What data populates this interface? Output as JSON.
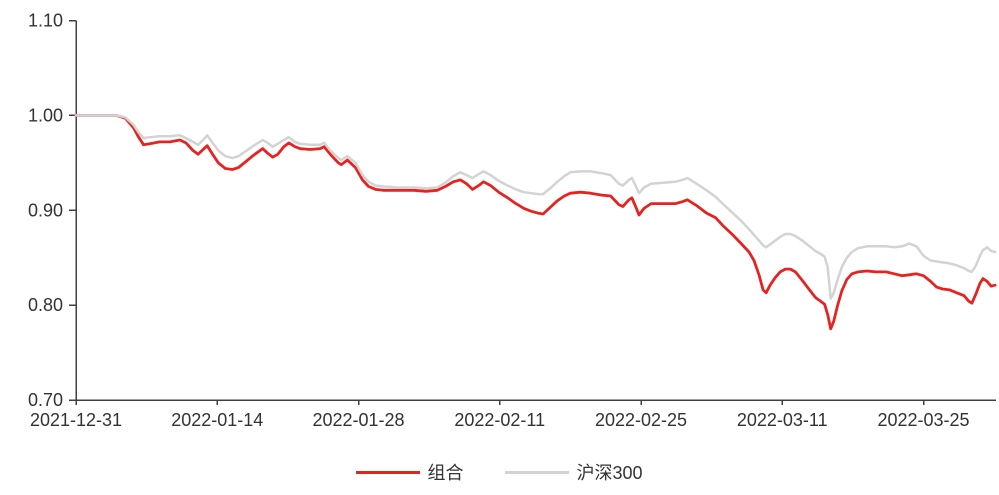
{
  "chart_data": {
    "type": "line",
    "title": "",
    "xlabel": "",
    "ylabel": "",
    "grid": "off",
    "legend_position": "bottom-center",
    "ylim": [
      0.7,
      1.1
    ],
    "y_ticks": [
      1.1,
      1.0,
      0.9,
      0.8,
      0.7
    ],
    "y_tick_labels": [
      "1.10",
      "1.00",
      "0.90",
      "0.80",
      "0.70"
    ],
    "x_unit": "days since 2021-12-31",
    "xlim_days": [
      0,
      91.4
    ],
    "x_ticks_days": [
      0,
      14,
      28,
      42,
      56,
      70,
      84
    ],
    "x_tick_labels": [
      "2021-12-31",
      "2022-01-14",
      "2022-01-28",
      "2022-02-11",
      "2022-02-25",
      "2022-03-11",
      "2022-03-25"
    ],
    "axis_color": "#404040",
    "label_color": "#333333",
    "x": [
      0,
      2,
      4,
      4.9,
      5.7,
      6.2,
      6.7,
      7.3,
      8.3,
      9.3,
      10.3,
      10.9,
      11.6,
      12.1,
      12.6,
      13,
      13.6,
      14.1,
      14.8,
      15.5,
      16.1,
      16.8,
      17.6,
      18.5,
      19,
      19.5,
      20,
      20.6,
      21.1,
      21.7,
      22.2,
      23.2,
      24.2,
      24.6,
      25.2,
      26,
      26.3,
      26.9,
      27.7,
      28.4,
      29,
      29.7,
      30.5,
      32,
      33.5,
      34.7,
      35.8,
      36.6,
      37.4,
      38.1,
      38.7,
      39.3,
      39.9,
      40.4,
      41.1,
      41.9,
      42.8,
      43.6,
      44.4,
      45.1,
      45.8,
      46.3,
      47,
      47.7,
      48.4,
      49,
      50,
      51,
      52.1,
      53,
      53.8,
      54.2,
      54.8,
      55.1,
      55.5,
      55.8,
      56.3,
      57,
      58.2,
      59.4,
      60.1,
      60.6,
      61.5,
      62.5,
      63.4,
      64.2,
      65.1,
      66,
      66.7,
      67.2,
      67.7,
      68.1,
      68.4,
      68.8,
      69.3,
      69.8,
      70.3,
      70.8,
      71.3,
      72,
      72.7,
      73.3,
      73.8,
      74.2,
      74.5,
      74.8,
      75.1,
      75.5,
      75.9,
      76.4,
      76.9,
      77.5,
      78.4,
      79.3,
      80.3,
      81.1,
      81.9,
      82.6,
      83.3,
      84,
      84.7,
      85.3,
      85.9,
      86.6,
      87.3,
      88,
      88.5,
      88.8,
      89.2,
      89.6,
      89.9,
      90.3,
      90.7,
      91.1
    ],
    "series": [
      {
        "name": "组合",
        "color": "#e62320",
        "stroke_width": 2.8,
        "values": [
          1.0,
          1.0,
          1.0,
          0.997,
          0.987,
          0.977,
          0.969,
          0.97,
          0.972,
          0.972,
          0.974,
          0.971,
          0.963,
          0.959,
          0.964,
          0.968,
          0.958,
          0.95,
          0.944,
          0.943,
          0.945,
          0.951,
          0.958,
          0.965,
          0.96,
          0.956,
          0.959,
          0.967,
          0.971,
          0.967,
          0.965,
          0.964,
          0.965,
          0.967,
          0.959,
          0.95,
          0.948,
          0.953,
          0.945,
          0.932,
          0.925,
          0.922,
          0.921,
          0.921,
          0.921,
          0.92,
          0.921,
          0.925,
          0.93,
          0.932,
          0.928,
          0.922,
          0.926,
          0.93,
          0.926,
          0.919,
          0.913,
          0.907,
          0.902,
          0.899,
          0.897,
          0.896,
          0.903,
          0.91,
          0.915,
          0.918,
          0.919,
          0.918,
          0.916,
          0.915,
          0.906,
          0.904,
          0.911,
          0.913,
          0.903,
          0.895,
          0.902,
          0.907,
          0.907,
          0.907,
          0.909,
          0.911,
          0.905,
          0.897,
          0.892,
          0.883,
          0.874,
          0.864,
          0.856,
          0.847,
          0.832,
          0.816,
          0.813,
          0.821,
          0.829,
          0.835,
          0.838,
          0.838,
          0.835,
          0.826,
          0.816,
          0.808,
          0.804,
          0.801,
          0.79,
          0.775,
          0.783,
          0.8,
          0.815,
          0.827,
          0.833,
          0.835,
          0.836,
          0.835,
          0.835,
          0.833,
          0.831,
          0.832,
          0.833,
          0.831,
          0.825,
          0.819,
          0.817,
          0.816,
          0.813,
          0.81,
          0.804,
          0.802,
          0.812,
          0.823,
          0.828,
          0.825,
          0.82,
          0.821
        ]
      },
      {
        "name": "沪深300",
        "color": "#d3d3d3",
        "stroke_width": 2.5,
        "values": [
          1.0,
          1.0,
          1.0,
          0.998,
          0.99,
          0.982,
          0.976,
          0.977,
          0.978,
          0.978,
          0.979,
          0.976,
          0.972,
          0.969,
          0.974,
          0.979,
          0.97,
          0.963,
          0.957,
          0.955,
          0.957,
          0.962,
          0.968,
          0.974,
          0.971,
          0.967,
          0.97,
          0.974,
          0.977,
          0.972,
          0.97,
          0.969,
          0.969,
          0.971,
          0.963,
          0.955,
          0.953,
          0.957,
          0.95,
          0.937,
          0.93,
          0.926,
          0.925,
          0.924,
          0.924,
          0.923,
          0.924,
          0.929,
          0.936,
          0.94,
          0.937,
          0.934,
          0.938,
          0.941,
          0.937,
          0.931,
          0.926,
          0.922,
          0.919,
          0.918,
          0.917,
          0.917,
          0.923,
          0.93,
          0.936,
          0.94,
          0.941,
          0.941,
          0.939,
          0.937,
          0.928,
          0.926,
          0.932,
          0.934,
          0.925,
          0.918,
          0.924,
          0.928,
          0.929,
          0.93,
          0.932,
          0.934,
          0.928,
          0.921,
          0.914,
          0.906,
          0.897,
          0.888,
          0.88,
          0.874,
          0.868,
          0.863,
          0.861,
          0.864,
          0.868,
          0.872,
          0.875,
          0.875,
          0.873,
          0.868,
          0.862,
          0.857,
          0.854,
          0.851,
          0.84,
          0.807,
          0.813,
          0.827,
          0.84,
          0.85,
          0.856,
          0.86,
          0.862,
          0.862,
          0.862,
          0.861,
          0.862,
          0.865,
          0.862,
          0.852,
          0.847,
          0.846,
          0.845,
          0.844,
          0.842,
          0.839,
          0.836,
          0.835,
          0.842,
          0.852,
          0.858,
          0.861,
          0.857,
          0.856
        ]
      }
    ]
  }
}
